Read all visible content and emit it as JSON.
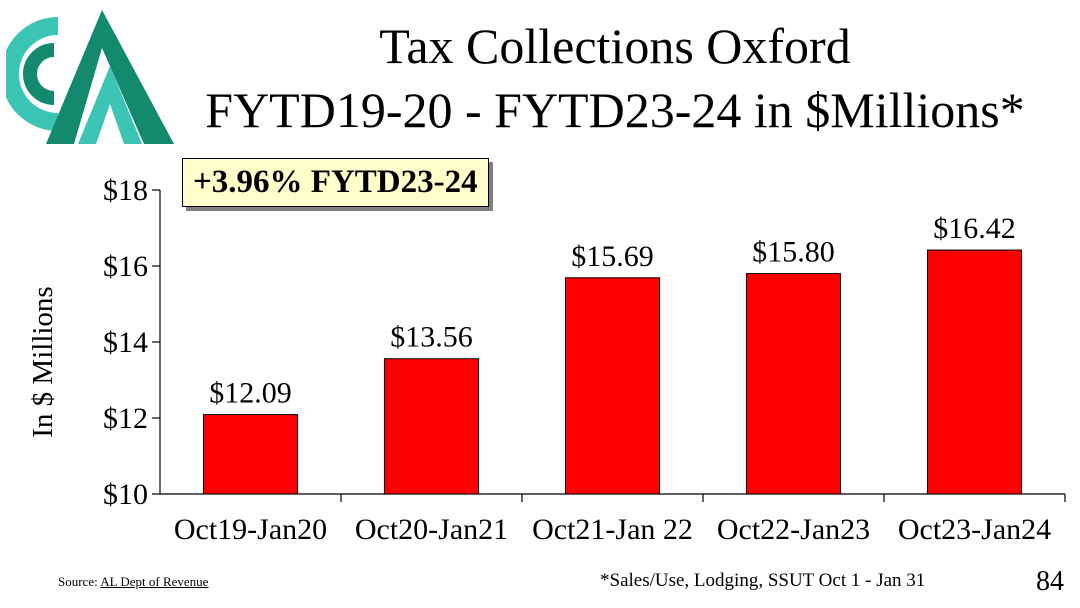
{
  "slide": {
    "title_line1": "Tax Collections Oxford",
    "title_line2": "FYTD19-20 - FYTD23-24 in $Millions*",
    "callout": "+3.96% FYTD23-24",
    "source_label": "Source:",
    "source_link": "AL Dept of Revenue",
    "footnote": "*Sales/Use, Lodging, SSUT Oct 1 - Jan 31",
    "page_number": "84"
  },
  "colors": {
    "bar": "#ff0000",
    "logo_dark": "#138a6e",
    "logo_light": "#3cc5b4"
  },
  "chart_data": {
    "type": "bar",
    "categories": [
      "Oct19-Jan20",
      "Oct20-Jan21",
      "Oct21-Jan 22",
      "Oct22-Jan23",
      "Oct23-Jan24"
    ],
    "values": [
      12.09,
      13.56,
      15.69,
      15.8,
      16.42
    ],
    "data_labels": [
      "$12.09",
      "$13.56",
      "$15.69",
      "$15.80",
      "$16.42"
    ],
    "ylabel": "In $ Millions",
    "xlabel": "",
    "ylim": [
      10,
      18
    ],
    "yticks": [
      10,
      12,
      14,
      16,
      18
    ],
    "ytick_labels": [
      "$10",
      "$12",
      "$14",
      "$16",
      "$18"
    ],
    "grid": false,
    "legend": "none"
  }
}
